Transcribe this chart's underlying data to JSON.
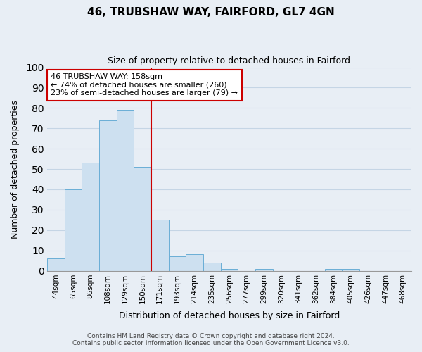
{
  "title": "46, TRUBSHAW WAY, FAIRFORD, GL7 4GN",
  "subtitle": "Size of property relative to detached houses in Fairford",
  "xlabel": "Distribution of detached houses by size in Fairford",
  "ylabel": "Number of detached properties",
  "categories": [
    "44sqm",
    "65sqm",
    "86sqm",
    "108sqm",
    "129sqm",
    "150sqm",
    "171sqm",
    "193sqm",
    "214sqm",
    "235sqm",
    "256sqm",
    "277sqm",
    "299sqm",
    "320sqm",
    "341sqm",
    "362sqm",
    "384sqm",
    "405sqm",
    "426sqm",
    "447sqm",
    "468sqm"
  ],
  "values": [
    6,
    40,
    53,
    74,
    79,
    51,
    25,
    7,
    8,
    4,
    1,
    0,
    1,
    0,
    0,
    0,
    1,
    1,
    0,
    0,
    0
  ],
  "bar_color": "#cde0f0",
  "bar_edge_color": "#6aaed6",
  "vline_color": "#cc0000",
  "annotation_text": "46 TRUBSHAW WAY: 158sqm\n← 74% of detached houses are smaller (260)\n23% of semi-detached houses are larger (79) →",
  "annotation_box_facecolor": "#ffffff",
  "annotation_box_edgecolor": "#cc0000",
  "ylim": [
    0,
    100
  ],
  "yticks": [
    0,
    10,
    20,
    30,
    40,
    50,
    60,
    70,
    80,
    90,
    100
  ],
  "footer_line1": "Contains HM Land Registry data © Crown copyright and database right 2024.",
  "footer_line2": "Contains public sector information licensed under the Open Government Licence v3.0.",
  "fig_facecolor": "#e8eef5",
  "plot_facecolor": "#e8eef5",
  "grid_color": "#c5d5e5",
  "vline_x_index": 5
}
